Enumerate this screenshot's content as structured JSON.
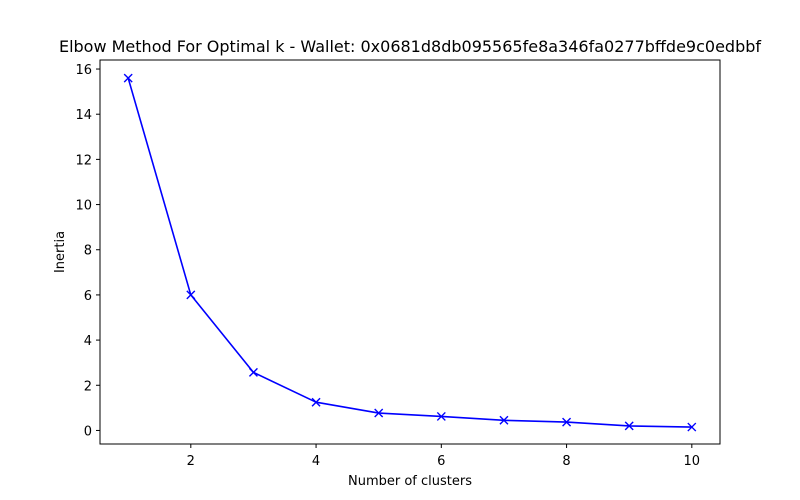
{
  "chart_data": {
    "type": "line",
    "title": "Elbow Method For Optimal k - Wallet: 0x0681d8db095565fe8a346fa0277bffde9c0edbbf",
    "xlabel": "Number of clusters",
    "ylabel": "Inertia",
    "xlim": [
      0.55,
      10.45
    ],
    "ylim": [
      -0.6,
      16.4
    ],
    "xticks": [
      2,
      4,
      6,
      8,
      10
    ],
    "yticks": [
      0,
      2,
      4,
      6,
      8,
      10,
      12,
      14,
      16
    ],
    "grid": false,
    "legend": "none",
    "series": [
      {
        "color": "#0000ff",
        "marker": "x",
        "x": [
          1,
          2,
          3,
          4,
          5,
          6,
          7,
          8,
          9,
          10
        ],
        "y": [
          15.6,
          6.0,
          2.57,
          1.25,
          0.77,
          0.62,
          0.45,
          0.37,
          0.2,
          0.15
        ]
      }
    ]
  }
}
